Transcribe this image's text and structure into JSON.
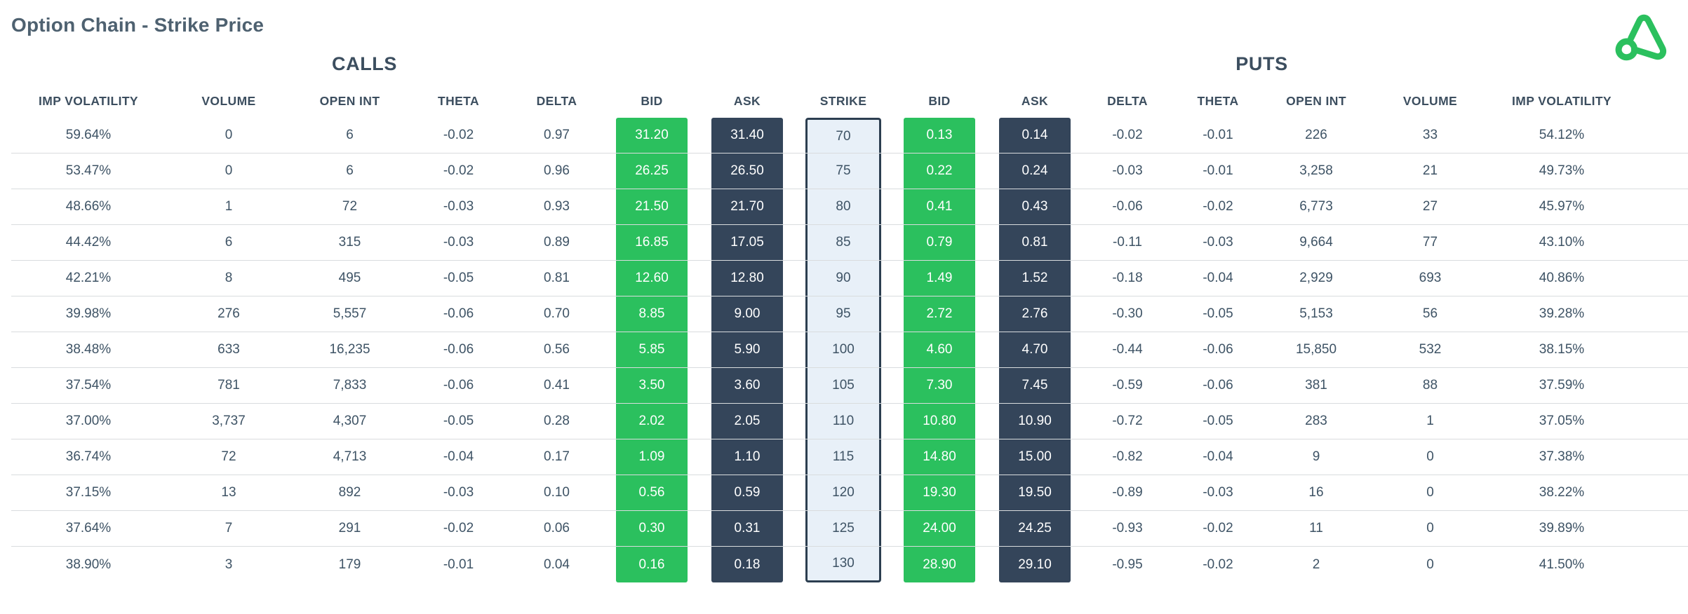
{
  "page": {
    "title": "Option Chain - Strike Price"
  },
  "logo": {
    "name": "brand-logo",
    "color": "#2bc05e"
  },
  "colors": {
    "bid_green": "#2bc05e",
    "ask_navy": "#34455a",
    "strike_fill": "#e8f0f8",
    "strike_border": "#2c3e50",
    "row_line": "#d9dcde",
    "text": "#3e5365"
  },
  "table": {
    "group_headers": {
      "calls": "CALLS",
      "puts": "PUTS"
    },
    "columns": [
      {
        "id": "call-iv",
        "label": "IMP VOLATILITY",
        "type": "plain",
        "side": "calls"
      },
      {
        "id": "call-volume",
        "label": "VOLUME",
        "type": "plain",
        "side": "calls"
      },
      {
        "id": "call-open-int",
        "label": "OPEN INT",
        "type": "plain",
        "side": "calls"
      },
      {
        "id": "call-theta",
        "label": "THETA",
        "type": "plain",
        "side": "calls"
      },
      {
        "id": "call-delta",
        "label": "DELTA",
        "type": "plain",
        "side": "calls"
      },
      {
        "id": "call-bid",
        "label": "BID",
        "type": "bid",
        "side": "calls"
      },
      {
        "id": "call-ask",
        "label": "ASK",
        "type": "ask",
        "side": "calls"
      },
      {
        "id": "strike",
        "label": "STRIKE",
        "type": "strike",
        "side": "center"
      },
      {
        "id": "put-bid",
        "label": "BID",
        "type": "bid",
        "side": "puts"
      },
      {
        "id": "put-ask",
        "label": "ASK",
        "type": "ask",
        "side": "puts"
      },
      {
        "id": "put-delta",
        "label": "DELTA",
        "type": "plain",
        "side": "puts"
      },
      {
        "id": "put-theta",
        "label": "THETA",
        "type": "plain",
        "side": "puts"
      },
      {
        "id": "put-open-int",
        "label": "OPEN INT",
        "type": "plain",
        "side": "puts"
      },
      {
        "id": "put-volume",
        "label": "VOLUME",
        "type": "plain",
        "side": "puts"
      },
      {
        "id": "put-iv",
        "label": "IMP VOLATILITY",
        "type": "plain",
        "side": "puts"
      }
    ],
    "rows": [
      {
        "cells": [
          "59.64%",
          "0",
          "6",
          "-0.02",
          "0.97",
          "31.20",
          "31.40",
          "70",
          "0.13",
          "0.14",
          "-0.02",
          "-0.01",
          "226",
          "33",
          "54.12%"
        ]
      },
      {
        "cells": [
          "53.47%",
          "0",
          "6",
          "-0.02",
          "0.96",
          "26.25",
          "26.50",
          "75",
          "0.22",
          "0.24",
          "-0.03",
          "-0.01",
          "3,258",
          "21",
          "49.73%"
        ]
      },
      {
        "cells": [
          "48.66%",
          "1",
          "72",
          "-0.03",
          "0.93",
          "21.50",
          "21.70",
          "80",
          "0.41",
          "0.43",
          "-0.06",
          "-0.02",
          "6,773",
          "27",
          "45.97%"
        ]
      },
      {
        "cells": [
          "44.42%",
          "6",
          "315",
          "-0.03",
          "0.89",
          "16.85",
          "17.05",
          "85",
          "0.79",
          "0.81",
          "-0.11",
          "-0.03",
          "9,664",
          "77",
          "43.10%"
        ]
      },
      {
        "cells": [
          "42.21%",
          "8",
          "495",
          "-0.05",
          "0.81",
          "12.60",
          "12.80",
          "90",
          "1.49",
          "1.52",
          "-0.18",
          "-0.04",
          "2,929",
          "693",
          "40.86%"
        ]
      },
      {
        "cells": [
          "39.98%",
          "276",
          "5,557",
          "-0.06",
          "0.70",
          "8.85",
          "9.00",
          "95",
          "2.72",
          "2.76",
          "-0.30",
          "-0.05",
          "5,153",
          "56",
          "39.28%"
        ]
      },
      {
        "cells": [
          "38.48%",
          "633",
          "16,235",
          "-0.06",
          "0.56",
          "5.85",
          "5.90",
          "100",
          "4.60",
          "4.70",
          "-0.44",
          "-0.06",
          "15,850",
          "532",
          "38.15%"
        ]
      },
      {
        "cells": [
          "37.54%",
          "781",
          "7,833",
          "-0.06",
          "0.41",
          "3.50",
          "3.60",
          "105",
          "7.30",
          "7.45",
          "-0.59",
          "-0.06",
          "381",
          "88",
          "37.59%"
        ]
      },
      {
        "cells": [
          "37.00%",
          "3,737",
          "4,307",
          "-0.05",
          "0.28",
          "2.02",
          "2.05",
          "110",
          "10.80",
          "10.90",
          "-0.72",
          "-0.05",
          "283",
          "1",
          "37.05%"
        ]
      },
      {
        "cells": [
          "36.74%",
          "72",
          "4,713",
          "-0.04",
          "0.17",
          "1.09",
          "1.10",
          "115",
          "14.80",
          "15.00",
          "-0.82",
          "-0.04",
          "9",
          "0",
          "37.38%"
        ]
      },
      {
        "cells": [
          "37.15%",
          "13",
          "892",
          "-0.03",
          "0.10",
          "0.56",
          "0.59",
          "120",
          "19.30",
          "19.50",
          "-0.89",
          "-0.03",
          "16",
          "0",
          "38.22%"
        ]
      },
      {
        "cells": [
          "37.64%",
          "7",
          "291",
          "-0.02",
          "0.06",
          "0.30",
          "0.31",
          "125",
          "24.00",
          "24.25",
          "-0.93",
          "-0.02",
          "11",
          "0",
          "39.89%"
        ]
      },
      {
        "cells": [
          "38.90%",
          "3",
          "179",
          "-0.01",
          "0.04",
          "0.16",
          "0.18",
          "130",
          "28.90",
          "29.10",
          "-0.95",
          "-0.02",
          "2",
          "0",
          "41.50%"
        ]
      }
    ]
  }
}
